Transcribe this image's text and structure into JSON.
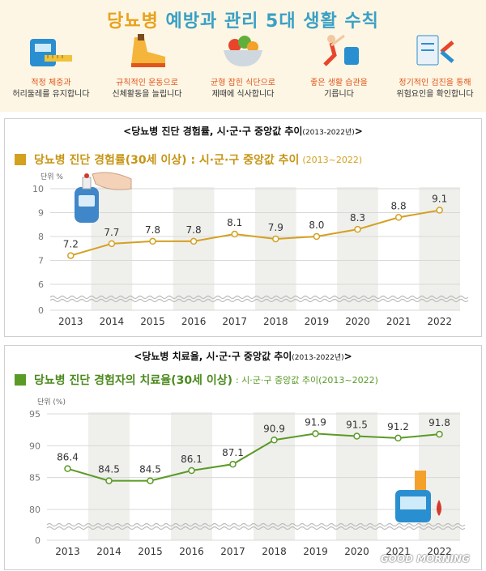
{
  "banner": {
    "title_part1": "당뇨병",
    "title_part2": "예방과 관리 5대 생활 수칙",
    "tips": [
      {
        "icon": "scale-tape-icon",
        "line1": "적정 체중과",
        "line2": "허리둘레를 유지합니다"
      },
      {
        "icon": "sneaker-icon",
        "line1": "규칙적인 운동으로",
        "line2": "신체활동을 늘립니다"
      },
      {
        "icon": "salad-bowl-icon",
        "line1": "균형 잡힌 식단으로",
        "line2": "제때에 식사합니다"
      },
      {
        "icon": "stretching-person-icon",
        "line1": "좋은 생활 습관을",
        "line2": "기릅니다"
      },
      {
        "icon": "medical-checkup-icon",
        "line1": "정기적인 검진을 통해",
        "line2": "위험요인을 확인합니다"
      }
    ]
  },
  "panel1": {
    "title": "<당뇨병 진단 경험률, 시·군·구 중앙값 추이",
    "title_small": "(2013-2022년)",
    "title_end": ">",
    "subtitle_main": "당뇨병 진단 경험률(30세 이상) : 시·군·구 중앙값 추이",
    "subtitle_extra": "(2013~2022)",
    "unit": "단위 %",
    "accent": "#d4a020"
  },
  "panel2": {
    "title": "<당뇨병 치료율, 시·군·구 중앙값 추이",
    "title_small": "(2013-2022년)",
    "title_end": ">",
    "subtitle_main": "당뇨병 진단 경험자의 치료율(30세 이상)",
    "subtitle_extra": ": 시·군·구 중앙값 추이(2013~2022)",
    "unit": "단위 (%)",
    "accent": "#5a9a26"
  },
  "watermark": "GOOD MORNING",
  "chart_data": [
    {
      "type": "line",
      "title": "당뇨병 진단 경험률(30세 이상) : 시·군·구 중앙값 추이(2013~2022)",
      "ylabel": "단위 %",
      "categories": [
        "2013",
        "2014",
        "2015",
        "2016",
        "2017",
        "2018",
        "2019",
        "2020",
        "2021",
        "2022"
      ],
      "values": [
        7.2,
        7.7,
        7.8,
        7.8,
        8.1,
        7.9,
        8.0,
        8.3,
        8.8,
        9.1
      ],
      "yticks": [
        0,
        6,
        7,
        8,
        9,
        10
      ],
      "ylim": [
        6,
        10
      ],
      "axis_break": true,
      "color": "#d4a020"
    },
    {
      "type": "line",
      "title": "당뇨병 진단 경험자의 치료율(30세 이상) : 시·군·구 중앙값 추이(2013~2022)",
      "ylabel": "단위 (%)",
      "categories": [
        "2013",
        "2014",
        "2015",
        "2016",
        "2017",
        "2018",
        "2019",
        "2020",
        "2021",
        "2022"
      ],
      "values": [
        86.4,
        84.5,
        84.5,
        86.1,
        87.1,
        90.9,
        91.9,
        91.5,
        91.2,
        91.8
      ],
      "yticks": [
        0,
        80,
        85,
        90,
        95
      ],
      "ylim": [
        80,
        95
      ],
      "axis_break": true,
      "color": "#5a9a26"
    }
  ]
}
